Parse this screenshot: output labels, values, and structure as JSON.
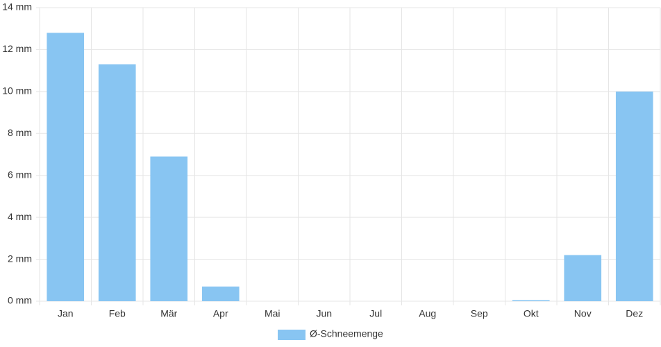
{
  "chart_data": {
    "type": "bar",
    "categories": [
      "Jan",
      "Feb",
      "Mär",
      "Apr",
      "Mai",
      "Jun",
      "Jul",
      "Aug",
      "Sep",
      "Okt",
      "Nov",
      "Dez"
    ],
    "series": [
      {
        "name": "Ø-Schneemenge",
        "color": "#88c5f2",
        "values": [
          12.8,
          11.3,
          6.9,
          0.7,
          0,
          0,
          0,
          0,
          0,
          0.05,
          2.2,
          10.0
        ]
      }
    ],
    "ylim": [
      0,
      14
    ],
    "yticks": [
      {
        "value": 0,
        "label": "0 mm"
      },
      {
        "value": 2,
        "label": "2 mm"
      },
      {
        "value": 4,
        "label": "4 mm"
      },
      {
        "value": 6,
        "label": "6 mm"
      },
      {
        "value": 8,
        "label": "8 mm"
      },
      {
        "value": 10,
        "label": "10 mm"
      },
      {
        "value": 12,
        "label": "12 mm"
      },
      {
        "value": 14,
        "label": "14 mm"
      }
    ],
    "grid": true
  }
}
